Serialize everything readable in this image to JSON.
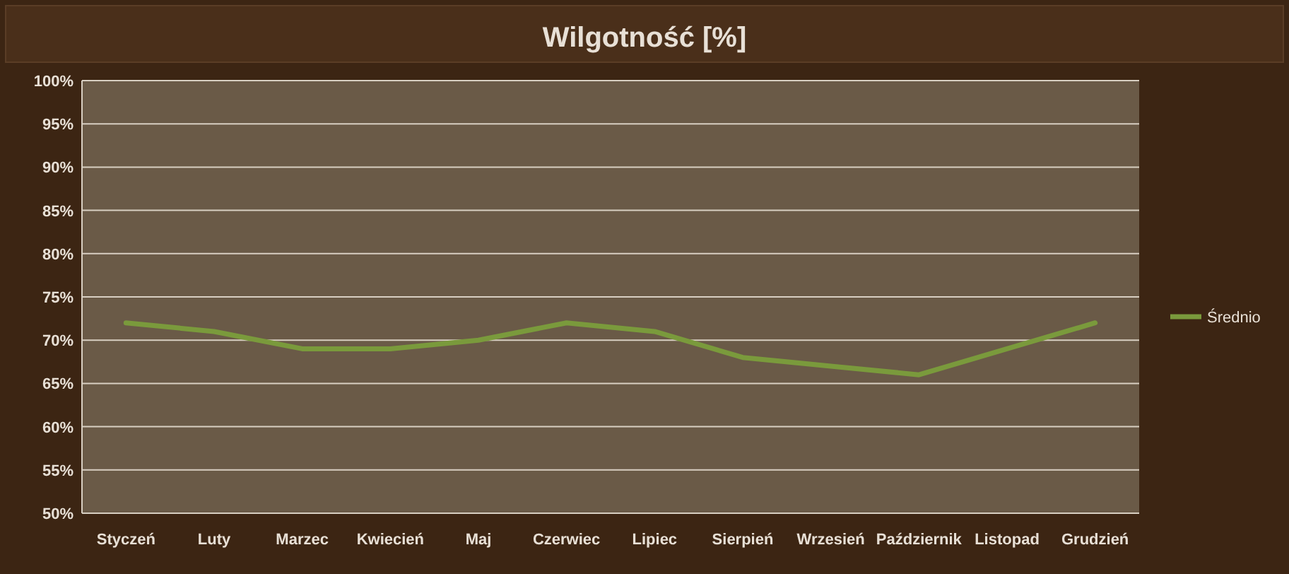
{
  "chart_data": {
    "type": "line",
    "title": "Wilgotność [%]",
    "categories": [
      "Styczeń",
      "Luty",
      "Marzec",
      "Kwiecień",
      "Maj",
      "Czerwiec",
      "Lipiec",
      "Sierpień",
      "Wrzesień",
      "Październik",
      "Listopad",
      "Grudzień"
    ],
    "series": [
      {
        "name": "Średnio",
        "color": "#7a9a3c",
        "values": [
          72,
          71,
          69,
          69,
          70,
          72,
          71,
          68,
          67,
          66,
          69,
          72
        ]
      }
    ],
    "ylim": [
      50,
      100
    ],
    "yticks": [
      {
        "value": 50,
        "label": "50%"
      },
      {
        "value": 55,
        "label": "55%"
      },
      {
        "value": 60,
        "label": "60%"
      },
      {
        "value": 65,
        "label": "65%"
      },
      {
        "value": 70,
        "label": "70%"
      },
      {
        "value": 75,
        "label": "75%"
      },
      {
        "value": 80,
        "label": "80%"
      },
      {
        "value": 85,
        "label": "85%"
      },
      {
        "value": 90,
        "label": "90%"
      },
      {
        "value": 95,
        "label": "95%"
      },
      {
        "value": 100,
        "label": "100%"
      }
    ],
    "grid": "y",
    "legend": "right",
    "marker": "none",
    "line_style": "solid"
  }
}
